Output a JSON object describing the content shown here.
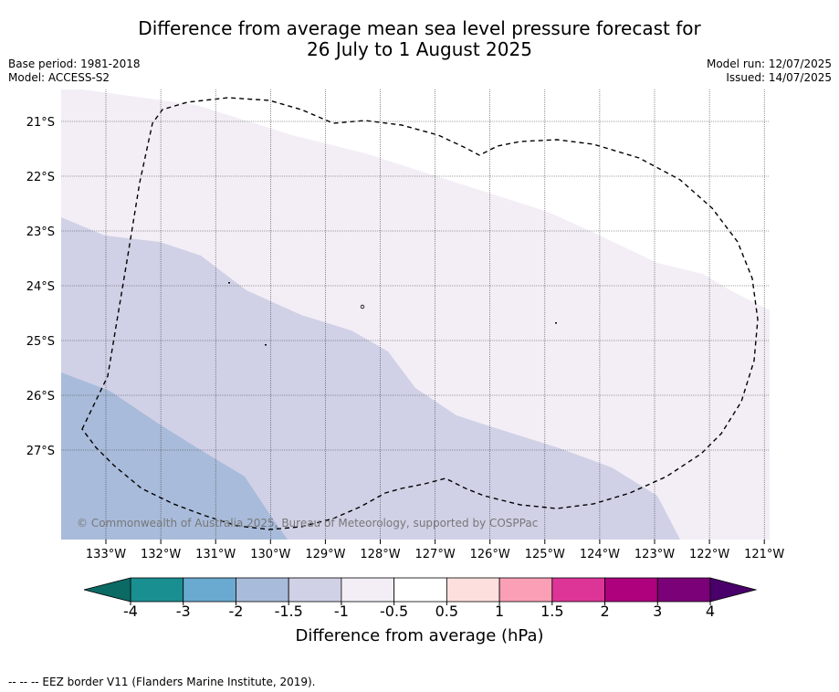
{
  "title_line1": "Difference from average mean sea level pressure forecast for",
  "title_line2": "26 July to 1 August 2025",
  "base_period": "Base period: 1981-2018",
  "model": "Model: ACCESS-S2",
  "model_run": "Model run: 12/07/2025",
  "issued": "Issued: 14/07/2025",
  "copyright": "© Commonwealth of Australia 2025, Bureau of Meteorology, supported by COSPPac",
  "lat_labels": [
    "21°S",
    "22°S",
    "23°S",
    "24°S",
    "25°S",
    "26°S",
    "27°S"
  ],
  "lon_labels": [
    "133°W",
    "132°W",
    "131°W",
    "130°W",
    "129°W",
    "128°W",
    "127°W",
    "126°W",
    "125°W",
    "124°W",
    "123°W",
    "122°W",
    "121°W"
  ],
  "colorbar": {
    "label": "Difference from average (hPa)",
    "ticks": [
      "-4",
      "-3",
      "-2",
      "-1.5",
      "-1",
      "-0.5",
      "0.5",
      "1",
      "1.5",
      "2",
      "3",
      "4"
    ],
    "colors": [
      "#1a8f92",
      "#6aaad0",
      "#a8bbda",
      "#d0d1e6",
      "#f3eef6",
      "#ffffff",
      "#fde0dd",
      "#fa9fb5",
      "#dd3497",
      "#ae017e",
      "#7a0177"
    ],
    "under_color": "#0b6a64",
    "over_color": "#49006a"
  },
  "footnote": "-- -- -- EEZ border V11 (Flanders Marine Institute, 2019).",
  "icons": [
    "colorbar-under-arrow",
    "colorbar-over-arrow"
  ]
}
